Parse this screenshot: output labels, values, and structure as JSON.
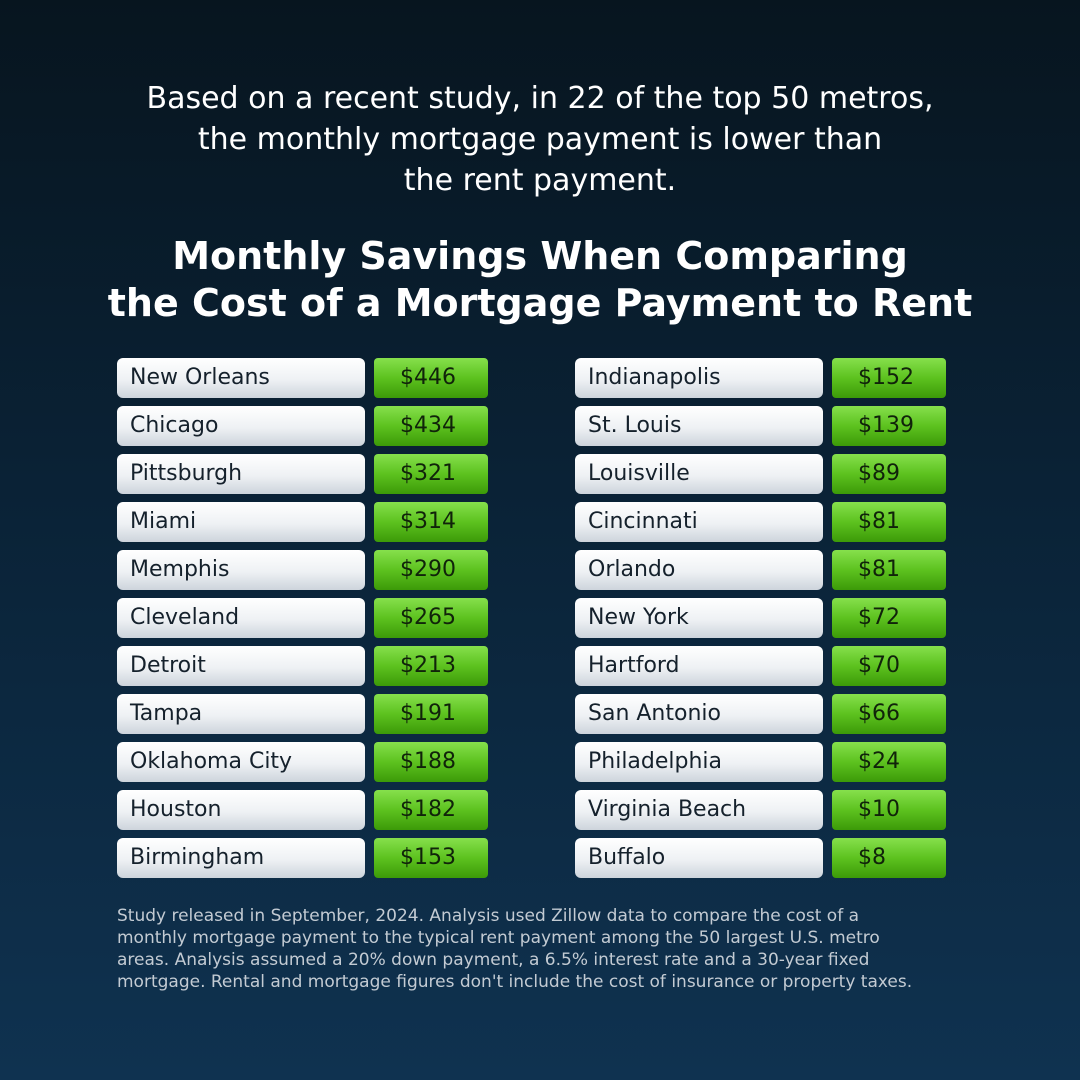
{
  "intro": {
    "lines": [
      "Based on a recent study, in 22 of the top 50 metros,",
      "the monthly mortgage payment is lower than",
      "the rent payment."
    ]
  },
  "title": {
    "lines": [
      "Monthly Savings When Comparing",
      "the Cost of a Mortgage Payment to Rent"
    ]
  },
  "left_column": [
    {
      "city": "New Orleans",
      "amount": "$446"
    },
    {
      "city": "Chicago",
      "amount": "$434"
    },
    {
      "city": "Pittsburgh",
      "amount": "$321"
    },
    {
      "city": "Miami",
      "amount": "$314"
    },
    {
      "city": "Memphis",
      "amount": "$290"
    },
    {
      "city": "Cleveland",
      "amount": "$265"
    },
    {
      "city": "Detroit",
      "amount": "$213"
    },
    {
      "city": "Tampa",
      "amount": "$191"
    },
    {
      "city": "Oklahoma City",
      "amount": "$188"
    },
    {
      "city": "Houston",
      "amount": "$182"
    },
    {
      "city": "Birmingham",
      "amount": "$153"
    }
  ],
  "right_column": [
    {
      "city": "Indianapolis",
      "amount": "$152"
    },
    {
      "city": "St. Louis",
      "amount": "$139"
    },
    {
      "city": "Louisville",
      "amount": "$89"
    },
    {
      "city": "Cincinnati",
      "amount": "$81"
    },
    {
      "city": "Orlando",
      "amount": "$81"
    },
    {
      "city": "New York",
      "amount": "$72"
    },
    {
      "city": "Hartford",
      "amount": "$70"
    },
    {
      "city": "San Antonio",
      "amount": "$66"
    },
    {
      "city": "Philadelphia",
      "amount": "$24"
    },
    {
      "city": "Virginia Beach",
      "amount": "$10"
    },
    {
      "city": "Buffalo",
      "amount": "$8"
    }
  ],
  "footnote": {
    "lines": [
      "Study released in September, 2024. Analysis used Zillow data to compare the cost of a",
      "monthly mortgage payment to the typical rent payment among the 50 largest U.S. metro",
      "areas. Analysis assumed a 20% down payment, a 6.5% interest rate and a 30-year fixed",
      "mortgage. Rental and mortgage figures don't include the cost of insurance or property taxes."
    ]
  },
  "colors": {
    "background_top": "#07151f",
    "background_bottom": "#0f3250",
    "amount_green": "#5dc21f",
    "city_pill": "#eef1f4"
  }
}
